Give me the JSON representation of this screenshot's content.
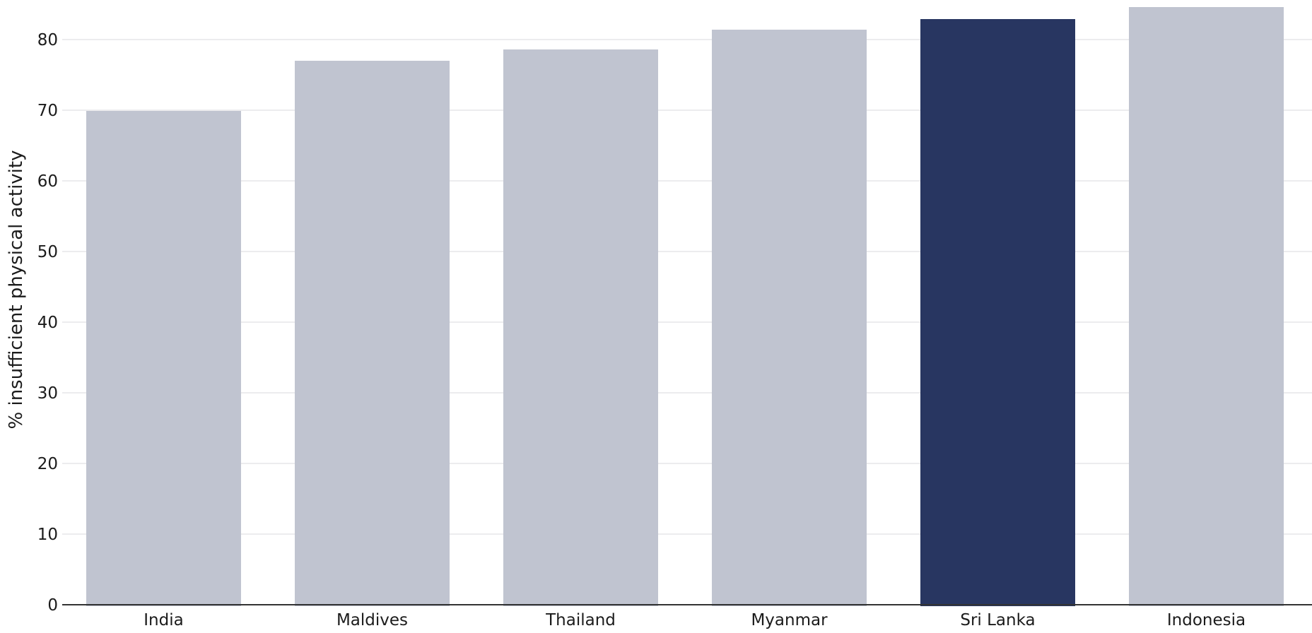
{
  "chart_data": {
    "type": "bar",
    "title": "",
    "xlabel": "",
    "ylabel": "% insufficient physical activity",
    "categories": [
      "India",
      "Maldives",
      "Thailand",
      "Myanmar",
      "Sri Lanka",
      "Indonesia"
    ],
    "values": [
      69.9,
      77.0,
      78.6,
      81.4,
      82.9,
      84.6
    ],
    "ylim": [
      0,
      85
    ],
    "yticks": [
      0,
      10,
      20,
      30,
      40,
      50,
      60,
      70,
      80
    ],
    "grid": true,
    "legend": "none",
    "highlight": "Sri Lanka",
    "colors": {
      "bar": "#bfc3cf",
      "highlight_bar": "#283661",
      "grid": "#e6e6e9",
      "axis": "#333333"
    }
  }
}
